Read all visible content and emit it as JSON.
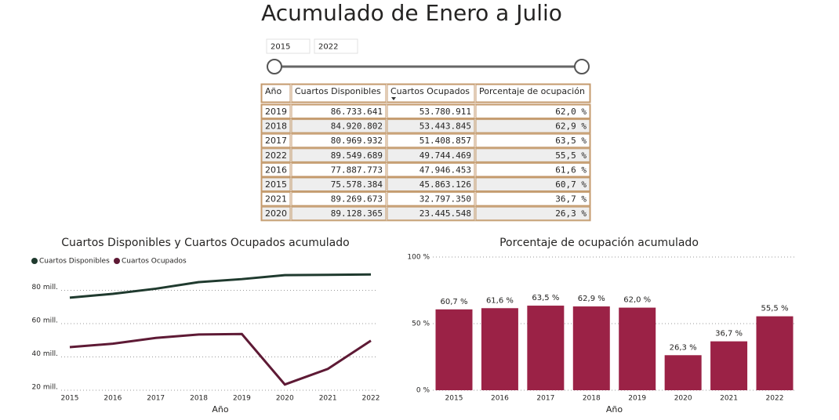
{
  "title": "Acumulado de Enero a Julio",
  "slicer": {
    "start": "2015",
    "end": "2022"
  },
  "table": {
    "columns": [
      "Año",
      "Cuartos Disponibles",
      "Cuartos Ocupados",
      "Porcentaje de ocupación"
    ],
    "rows": [
      [
        "2019",
        "86.733.641",
        "53.780.911",
        "62,0 %"
      ],
      [
        "2018",
        "84.920.802",
        "53.443.845",
        "62,9 %"
      ],
      [
        "2017",
        "80.969.932",
        "51.408.857",
        "63,5 %"
      ],
      [
        "2022",
        "89.549.689",
        "49.744.469",
        "55,5 %"
      ],
      [
        "2016",
        "77.887.773",
        "47.946.453",
        "61,6 %"
      ],
      [
        "2015",
        "75.578.384",
        "45.863.126",
        "60,7 %"
      ],
      [
        "2021",
        "89.269.673",
        "32.797.350",
        "36,7 %"
      ],
      [
        "2020",
        "89.128.365",
        "23.445.548",
        "26,3 %"
      ]
    ]
  },
  "chart_data": [
    {
      "type": "line",
      "title": "Cuartos Disponibles y Cuartos Ocupados acumulado",
      "x_label": "Año",
      "categories": [
        "2015",
        "2016",
        "2017",
        "2018",
        "2019",
        "2020",
        "2021",
        "2022"
      ],
      "series": [
        {
          "name": "Cuartos Disponibles",
          "color": "#1f3a2e",
          "values": [
            75578384,
            77887773,
            80969932,
            84920802,
            86733641,
            89128365,
            89269673,
            89549689
          ]
        },
        {
          "name": "Cuartos Ocupados",
          "color": "#5e1a35",
          "values": [
            45863126,
            47946453,
            51408857,
            53443845,
            53780911,
            23445548,
            32797350,
            49744469
          ]
        }
      ],
      "ylim": [
        20000000,
        92000000
      ],
      "yticks": [
        {
          "value": 20000000,
          "label": "20 mill."
        },
        {
          "value": 40000000,
          "label": "40 mill."
        },
        {
          "value": 60000000,
          "label": "60 mill."
        },
        {
          "value": 80000000,
          "label": "80 mill."
        }
      ],
      "grid": true,
      "legend": "top-left"
    },
    {
      "type": "bar",
      "title": "Porcentaje de ocupación acumulado",
      "x_label": "Año",
      "categories": [
        "2015",
        "2016",
        "2017",
        "2018",
        "2019",
        "2020",
        "2021",
        "2022"
      ],
      "values": [
        60.7,
        61.6,
        63.5,
        62.9,
        62.0,
        26.3,
        36.7,
        55.5
      ],
      "value_labels": [
        "60,7 %",
        "61,6 %",
        "63,5 %",
        "62,9 %",
        "62,0 %",
        "26,3 %",
        "36,7 %",
        "55,5 %"
      ],
      "color": "#9b2246",
      "ylim": [
        0,
        100
      ],
      "yticks": [
        {
          "value": 0,
          "label": "0 %"
        },
        {
          "value": 50,
          "label": "50 %"
        },
        {
          "value": 100,
          "label": "100 %"
        }
      ],
      "grid": true
    }
  ]
}
